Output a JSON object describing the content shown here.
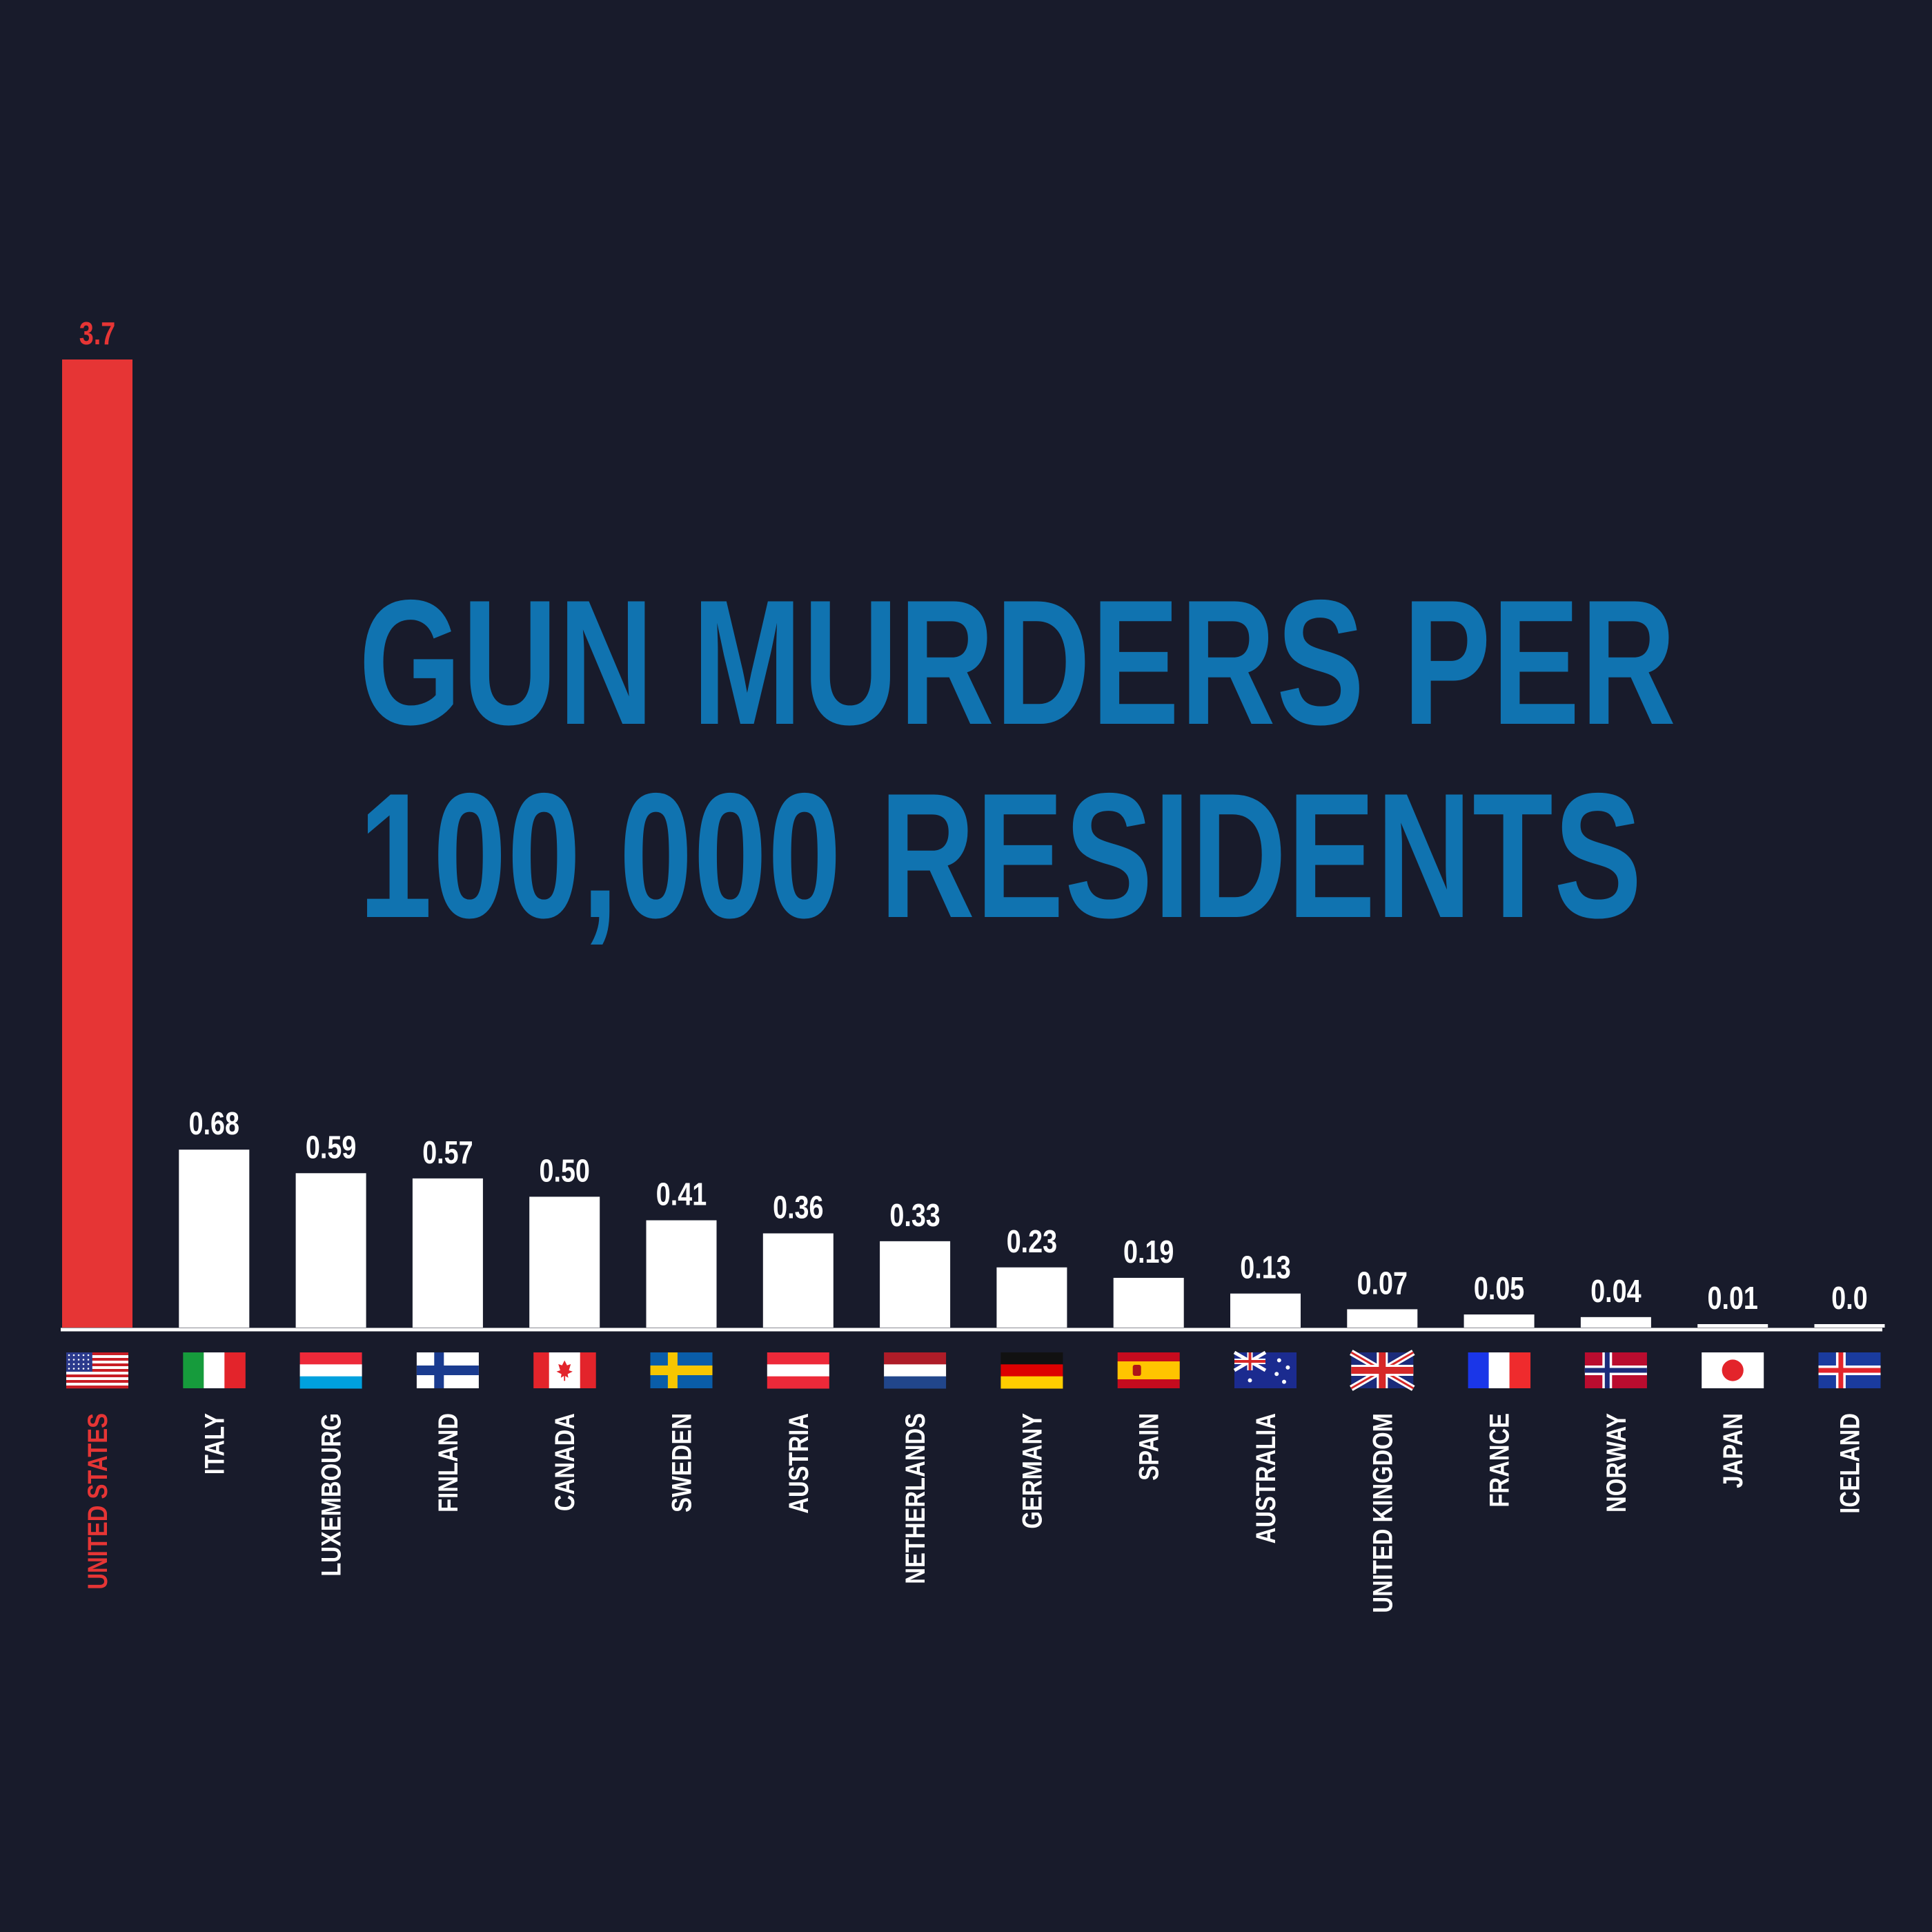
{
  "chart_data": {
    "type": "bar",
    "title_lines": [
      "GUN MURDERS PER",
      "100,000 RESIDENTS"
    ],
    "categories": [
      "UNITED STATES",
      "ITALY",
      "LUXEMBOURG",
      "FINLAND",
      "CANADA",
      "SWEDEN",
      "AUSTRIA",
      "NETHERLANDS",
      "GERMANY",
      "SPAIN",
      "AUSTRALIA",
      "UNITED KINGDOM",
      "FRANCE",
      "NORWAY",
      "JAPAN",
      "ICELAND"
    ],
    "values": [
      3.7,
      0.68,
      0.59,
      0.57,
      0.5,
      0.41,
      0.36,
      0.33,
      0.23,
      0.19,
      0.13,
      0.07,
      0.05,
      0.04,
      0.01,
      0.0
    ],
    "value_labels": [
      "3.7",
      "0.68",
      "0.59",
      "0.57",
      "0.50",
      "0.41",
      "0.36",
      "0.33",
      "0.23",
      "0.19",
      "0.13",
      "0.07",
      "0.05",
      "0.04",
      "0.01",
      "0.0"
    ],
    "flag_icons": [
      "us-flag-icon",
      "italy-flag-icon",
      "luxembourg-flag-icon",
      "finland-flag-icon",
      "canada-flag-icon",
      "sweden-flag-icon",
      "austria-flag-icon",
      "netherlands-flag-icon",
      "germany-flag-icon",
      "spain-flag-icon",
      "australia-flag-icon",
      "uk-flag-icon",
      "france-flag-icon",
      "norway-flag-icon",
      "japan-flag-icon",
      "iceland-flag-icon"
    ],
    "highlight_index": 0,
    "ylim": [
      0,
      3.7
    ],
    "grid": false,
    "legend": "none",
    "colors": {
      "background": "#181b2b",
      "highlight": "#e63535",
      "bar": "#ffffff",
      "title": "#1073b0",
      "text": "#ffffff"
    }
  }
}
